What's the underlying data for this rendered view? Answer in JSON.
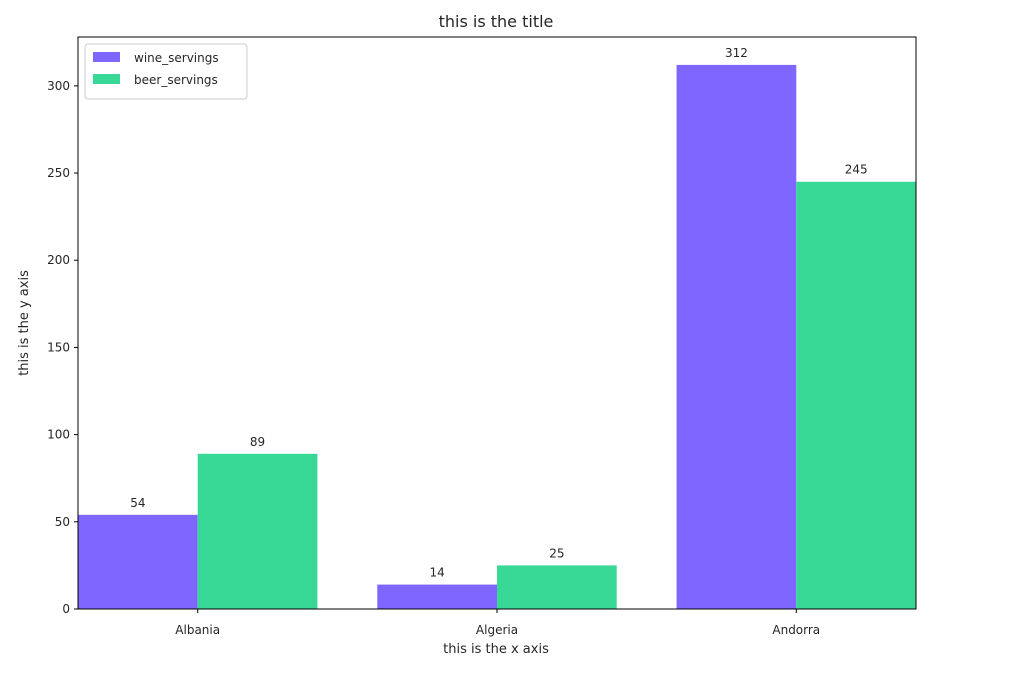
{
  "chart_data": {
    "type": "bar",
    "title": "this is the title",
    "xlabel": "this is the x axis",
    "ylabel": "this is the y axis",
    "categories": [
      "Albania",
      "Algeria",
      "Andorra"
    ],
    "series": [
      {
        "name": "wine_servings",
        "values": [
          54,
          14,
          312
        ],
        "color": "#7f66ff"
      },
      {
        "name": "beer_servings",
        "values": [
          89,
          25,
          245
        ],
        "color": "#38d996"
      }
    ],
    "ylim": [
      0,
      328
    ],
    "yticks": [
      0,
      50,
      100,
      150,
      200,
      250,
      300
    ],
    "grid": false,
    "legend": "top-left",
    "data_labels": true
  }
}
